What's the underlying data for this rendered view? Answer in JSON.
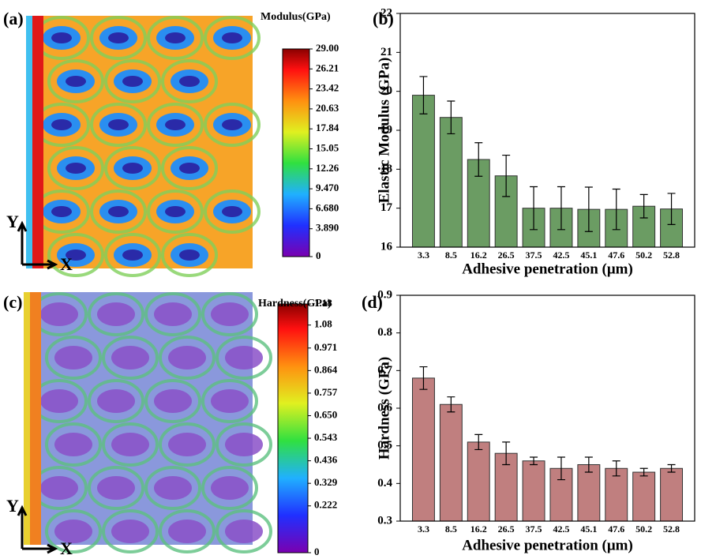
{
  "chart_data": [
    {
      "type": "heatmap",
      "label": "(a)",
      "title": "Modulus(GPa)",
      "y_arrow_label": "Y",
      "x_arrow_label": "X",
      "clim": [
        0,
        29
      ],
      "cticks": [
        {
          "value": 29,
          "label": "29.00"
        },
        26.21,
        23.42,
        20.63,
        17.84,
        15.05,
        12.26,
        {
          "value": 9.47,
          "label": "9.470"
        },
        {
          "value": 6.68,
          "label": "6.680"
        },
        {
          "value": 3.89,
          "label": "3.890"
        },
        0
      ]
    },
    {
      "type": "bar",
      "label": "(b)",
      "ylabel": "Elastic Modulus (GPa)",
      "xlabel": "Adhesive penetration (μm)",
      "categories": [
        "3.3",
        "8.5",
        "16.2",
        "26.5",
        "37.5",
        "42.5",
        "45.1",
        "47.6",
        "50.2",
        "52.8"
      ],
      "values": [
        19.9,
        19.33,
        18.25,
        17.83,
        17.0,
        17.0,
        16.97,
        16.97,
        17.05,
        16.98
      ],
      "errors": [
        0.48,
        0.42,
        0.43,
        0.53,
        0.55,
        0.55,
        0.57,
        0.52,
        0.3,
        0.4
      ],
      "color": "#6b9c63",
      "ylim": [
        16,
        22
      ],
      "yticks": [
        16,
        17,
        18,
        19,
        20,
        21,
        22
      ]
    },
    {
      "type": "heatmap",
      "label": "(c)",
      "title": "Hardness(GPa)",
      "y_arrow_label": "Y",
      "x_arrow_label": "X",
      "clim": [
        0,
        1.18
      ],
      "cticks": [
        1.18,
        1.08,
        0.971,
        0.864,
        0.757,
        {
          "value": 0.65,
          "label": "0.650"
        },
        0.543,
        0.436,
        0.329,
        0.222,
        0
      ]
    },
    {
      "type": "bar",
      "label": "(d)",
      "ylabel": "Hardness (GPa)",
      "xlabel": "Adhesive penetration (μm)",
      "categories": [
        "3.3",
        "8.5",
        "16.2",
        "26.5",
        "37.5",
        "42.5",
        "45.1",
        "47.6",
        "50.2",
        "52.8"
      ],
      "values": [
        0.68,
        0.61,
        0.51,
        0.48,
        0.46,
        0.44,
        0.45,
        0.44,
        0.43,
        0.44
      ],
      "errors": [
        0.03,
        0.02,
        0.02,
        0.03,
        0.01,
        0.03,
        0.02,
        0.02,
        0.01,
        0.01
      ],
      "color": "#c07f7f",
      "ylim": [
        0.3,
        0.9
      ],
      "yticks": [
        0.3,
        0.4,
        0.5,
        0.6,
        0.7,
        0.8,
        0.9
      ]
    }
  ]
}
